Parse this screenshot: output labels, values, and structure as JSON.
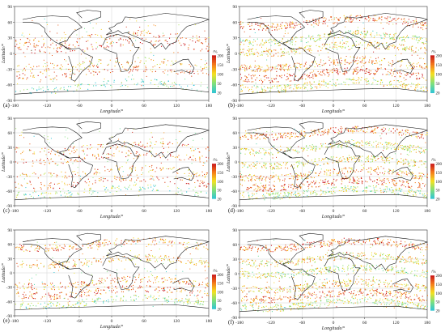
{
  "chart_data": [
    {
      "type": "scatter",
      "panel": "(a)",
      "xlabel": "Longitude/°",
      "ylabel": "Latitude/°",
      "xlim": [
        -180,
        180
      ],
      "ylim": [
        -90,
        90
      ],
      "xticks": [
        "-180",
        "-120",
        "-60",
        "0",
        "60",
        "120",
        "180"
      ],
      "yticks": [
        "90",
        "60",
        "30",
        "0",
        "-30",
        "-60",
        "-90"
      ],
      "colorbar": {
        "label": "/%",
        "ticks": [
          "200",
          "150",
          "100",
          "50",
          "20"
        ],
        "range": [
          20,
          200
        ],
        "colors": [
          "#2ec4d8",
          "#7fe07a",
          "#f5e11f",
          "#f57a1a",
          "#c8141a"
        ]
      },
      "bands": [
        {
          "lat": 30,
          "value": 160
        },
        {
          "lat": 15,
          "value": 180
        },
        {
          "lat": -20,
          "value": 130
        },
        {
          "lat": -35,
          "value": 170
        },
        {
          "lat": -62,
          "value": 40
        }
      ],
      "density": "low"
    },
    {
      "type": "scatter",
      "panel": "(b)",
      "xlabel": "Longitude/°",
      "ylabel": "Latitude/°",
      "xlim": [
        -180,
        180
      ],
      "ylim": [
        -90,
        90
      ],
      "xticks": [
        "-180",
        "-120",
        "-60",
        "0",
        "60",
        "120",
        "180"
      ],
      "yticks": [
        "90",
        "60",
        "30",
        "0",
        "-30",
        "-60",
        "-90"
      ],
      "colorbar": {
        "label": "/%",
        "ticks": [
          "200",
          "150",
          "100",
          "50",
          "20"
        ],
        "range": [
          20,
          200
        ],
        "colors": [
          "#2ec4d8",
          "#7fe07a",
          "#f5e11f",
          "#f57a1a",
          "#c8141a"
        ]
      },
      "bands": [
        {
          "lat": 60,
          "value": 170
        },
        {
          "lat": 30,
          "value": 90
        },
        {
          "lat": 10,
          "value": 120
        },
        {
          "lat": -20,
          "value": 150
        },
        {
          "lat": -40,
          "value": 180
        },
        {
          "lat": -60,
          "value": 100
        }
      ],
      "density": "high"
    },
    {
      "type": "scatter",
      "panel": "(c)",
      "xlabel": "Longitude/°",
      "ylabel": "Latitude/°",
      "xlim": [
        -180,
        180
      ],
      "ylim": [
        -90,
        90
      ],
      "xticks": [
        "-180",
        "-120",
        "-60",
        "0",
        "60",
        "120",
        "180"
      ],
      "yticks": [
        "90",
        "60",
        "30",
        "0",
        "-30",
        "-60",
        "-90"
      ],
      "colorbar": {
        "label": "/%",
        "ticks": [
          "200",
          "150",
          "100",
          "50",
          "20"
        ],
        "range": [
          20,
          200
        ],
        "colors": [
          "#2ec4d8",
          "#7fe07a",
          "#f5e11f",
          "#f57a1a",
          "#c8141a"
        ]
      },
      "bands": [
        {
          "lat": 30,
          "value": 160
        },
        {
          "lat": 10,
          "value": 170
        },
        {
          "lat": -20,
          "value": 140
        },
        {
          "lat": -40,
          "value": 170
        },
        {
          "lat": -60,
          "value": 60
        }
      ],
      "density": "low"
    },
    {
      "type": "scatter",
      "panel": "(d)",
      "xlabel": "Longitude/°",
      "ylabel": "Latitude/°",
      "xlim": [
        -180,
        180
      ],
      "ylim": [
        -90,
        90
      ],
      "xticks": [
        "-180",
        "-120",
        "-60",
        "0",
        "60",
        "120",
        "180"
      ],
      "yticks": [
        "90",
        "60",
        "30",
        "0",
        "-30",
        "-60",
        "-90"
      ],
      "colorbar": {
        "label": "/%",
        "ticks": [
          "200",
          "150",
          "100",
          "50",
          "20"
        ],
        "range": [
          20,
          200
        ],
        "colors": [
          "#2ec4d8",
          "#7fe07a",
          "#f5e11f",
          "#f57a1a",
          "#c8141a"
        ]
      },
      "bands": [
        {
          "lat": 60,
          "value": 160
        },
        {
          "lat": 30,
          "value": 100
        },
        {
          "lat": 0,
          "value": 110
        },
        {
          "lat": -25,
          "value": 140
        },
        {
          "lat": -45,
          "value": 170
        },
        {
          "lat": -62,
          "value": 80
        }
      ],
      "density": "high"
    },
    {
      "type": "scatter",
      "panel": "(e)",
      "xlabel": "Longitude/°",
      "ylabel": "Latitude/°",
      "xlim": [
        -180,
        180
      ],
      "ylim": [
        -90,
        90
      ],
      "xticks": [
        "-180",
        "-120",
        "-60",
        "0",
        "60",
        "120",
        "180"
      ],
      "yticks": [
        "90",
        "60",
        "30",
        "0",
        "-30",
        "-60",
        "-90"
      ],
      "colorbar": {
        "label": "/%",
        "ticks": [
          "200",
          "150",
          "100",
          "50",
          "20"
        ],
        "range": [
          20,
          200
        ],
        "colors": [
          "#2ec4d8",
          "#7fe07a",
          "#f5e11f",
          "#f57a1a",
          "#c8141a"
        ]
      },
      "bands": [
        {
          "lat": 60,
          "value": 150
        },
        {
          "lat": 25,
          "value": 130
        },
        {
          "lat": -20,
          "value": 150
        },
        {
          "lat": -40,
          "value": 170
        },
        {
          "lat": -60,
          "value": 70
        }
      ],
      "density": "mid"
    },
    {
      "type": "scatter",
      "panel": "(f)",
      "xlabel": "Longitude/°",
      "ylabel": "Latitude/°",
      "xlim": [
        -180,
        180
      ],
      "ylim": [
        -90,
        90
      ],
      "xticks": [
        "-180",
        "-120",
        "-60",
        "0",
        "60",
        "120",
        "180"
      ],
      "yticks": [
        "90",
        "60",
        "30",
        "0",
        "-30",
        "-60",
        "-90"
      ],
      "colorbar": {
        "label": "/%",
        "ticks": [
          "200",
          "150",
          "100",
          "50",
          "20"
        ],
        "range": [
          20,
          200
        ],
        "colors": [
          "#2ec4d8",
          "#7fe07a",
          "#f5e11f",
          "#f57a1a",
          "#c8141a"
        ]
      },
      "bands": [
        {
          "lat": 60,
          "value": 170
        },
        {
          "lat": 30,
          "value": 110
        },
        {
          "lat": 5,
          "value": 90
        },
        {
          "lat": -25,
          "value": 130
        },
        {
          "lat": -45,
          "value": 160
        },
        {
          "lat": -62,
          "value": 90
        }
      ],
      "density": "high"
    }
  ]
}
